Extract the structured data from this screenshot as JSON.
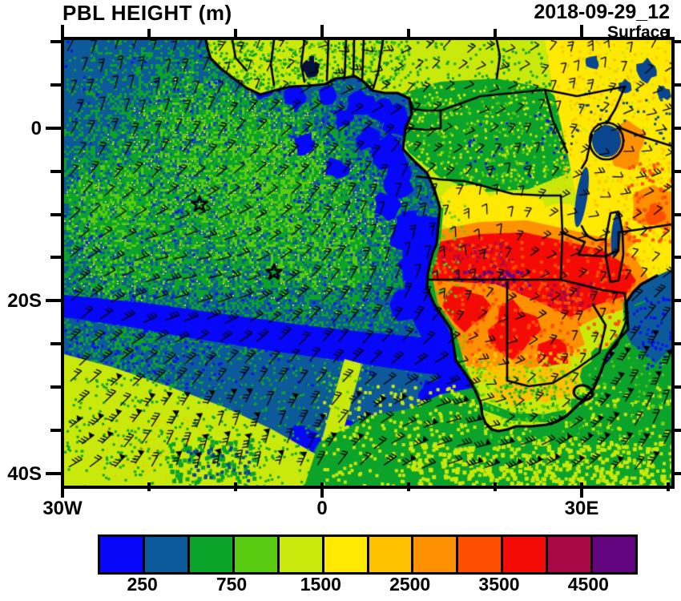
{
  "header": {
    "title": "PBL HEIGHT (m)",
    "datetime": "2018-09-29_12",
    "level": "Surface"
  },
  "axes": {
    "lat_ticks": [
      {
        "label": "0"
      },
      {
        "label": "20S"
      },
      {
        "label": "40S"
      }
    ],
    "lon_ticks": [
      {
        "label": "30W"
      },
      {
        "label": "0"
      },
      {
        "label": "30E"
      }
    ]
  },
  "colorbar": {
    "colors": [
      "#0707fa",
      "#0d5a9b",
      "#0ca32b",
      "#59cb11",
      "#c9e80b",
      "#ffe903",
      "#fec201",
      "#fe9102",
      "#fe4f01",
      "#f50b06",
      "#a80846",
      "#62057f"
    ],
    "labels": [
      "250",
      "750",
      "1500",
      "2500",
      "3500",
      "4500"
    ]
  },
  "map": {
    "markers": [
      {
        "type": "star"
      },
      {
        "type": "star"
      }
    ]
  }
}
